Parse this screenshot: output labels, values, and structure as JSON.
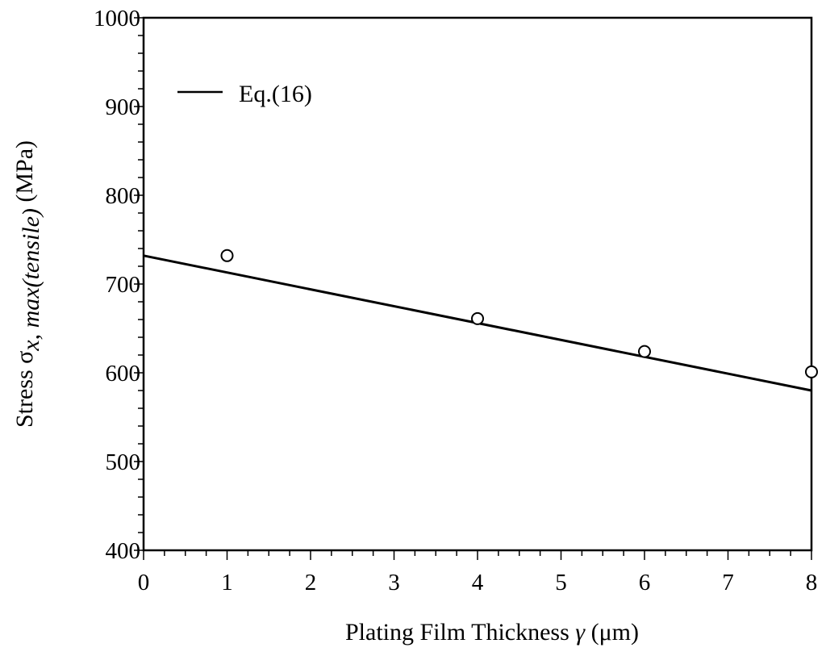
{
  "chart_data": {
    "type": "line",
    "xlabel": {
      "prefix": "Plating Film  Thickness ",
      "symbol": "γ",
      "unit": "  (μm)"
    },
    "ylabel": {
      "prefix": "Stress σ",
      "subscript": "x, max(tensile)",
      "unit": " (MPa)"
    },
    "xlim": [
      0,
      8
    ],
    "ylim": [
      400,
      1000
    ],
    "xticks": [
      0,
      1,
      2,
      3,
      4,
      5,
      6,
      7,
      8
    ],
    "yticks": [
      400,
      500,
      600,
      700,
      800,
      900,
      1000
    ],
    "grid": false,
    "legend_position": "top-left",
    "series": [
      {
        "name": "Eq.(16)",
        "kind": "line",
        "color": "#000000",
        "x": [
          0,
          8
        ],
        "y": [
          732,
          580
        ]
      },
      {
        "kind": "scatter",
        "marker": "open-circle",
        "color": "#000000",
        "x": [
          1,
          4,
          6,
          8
        ],
        "y": [
          732,
          661,
          624,
          601
        ]
      }
    ]
  }
}
